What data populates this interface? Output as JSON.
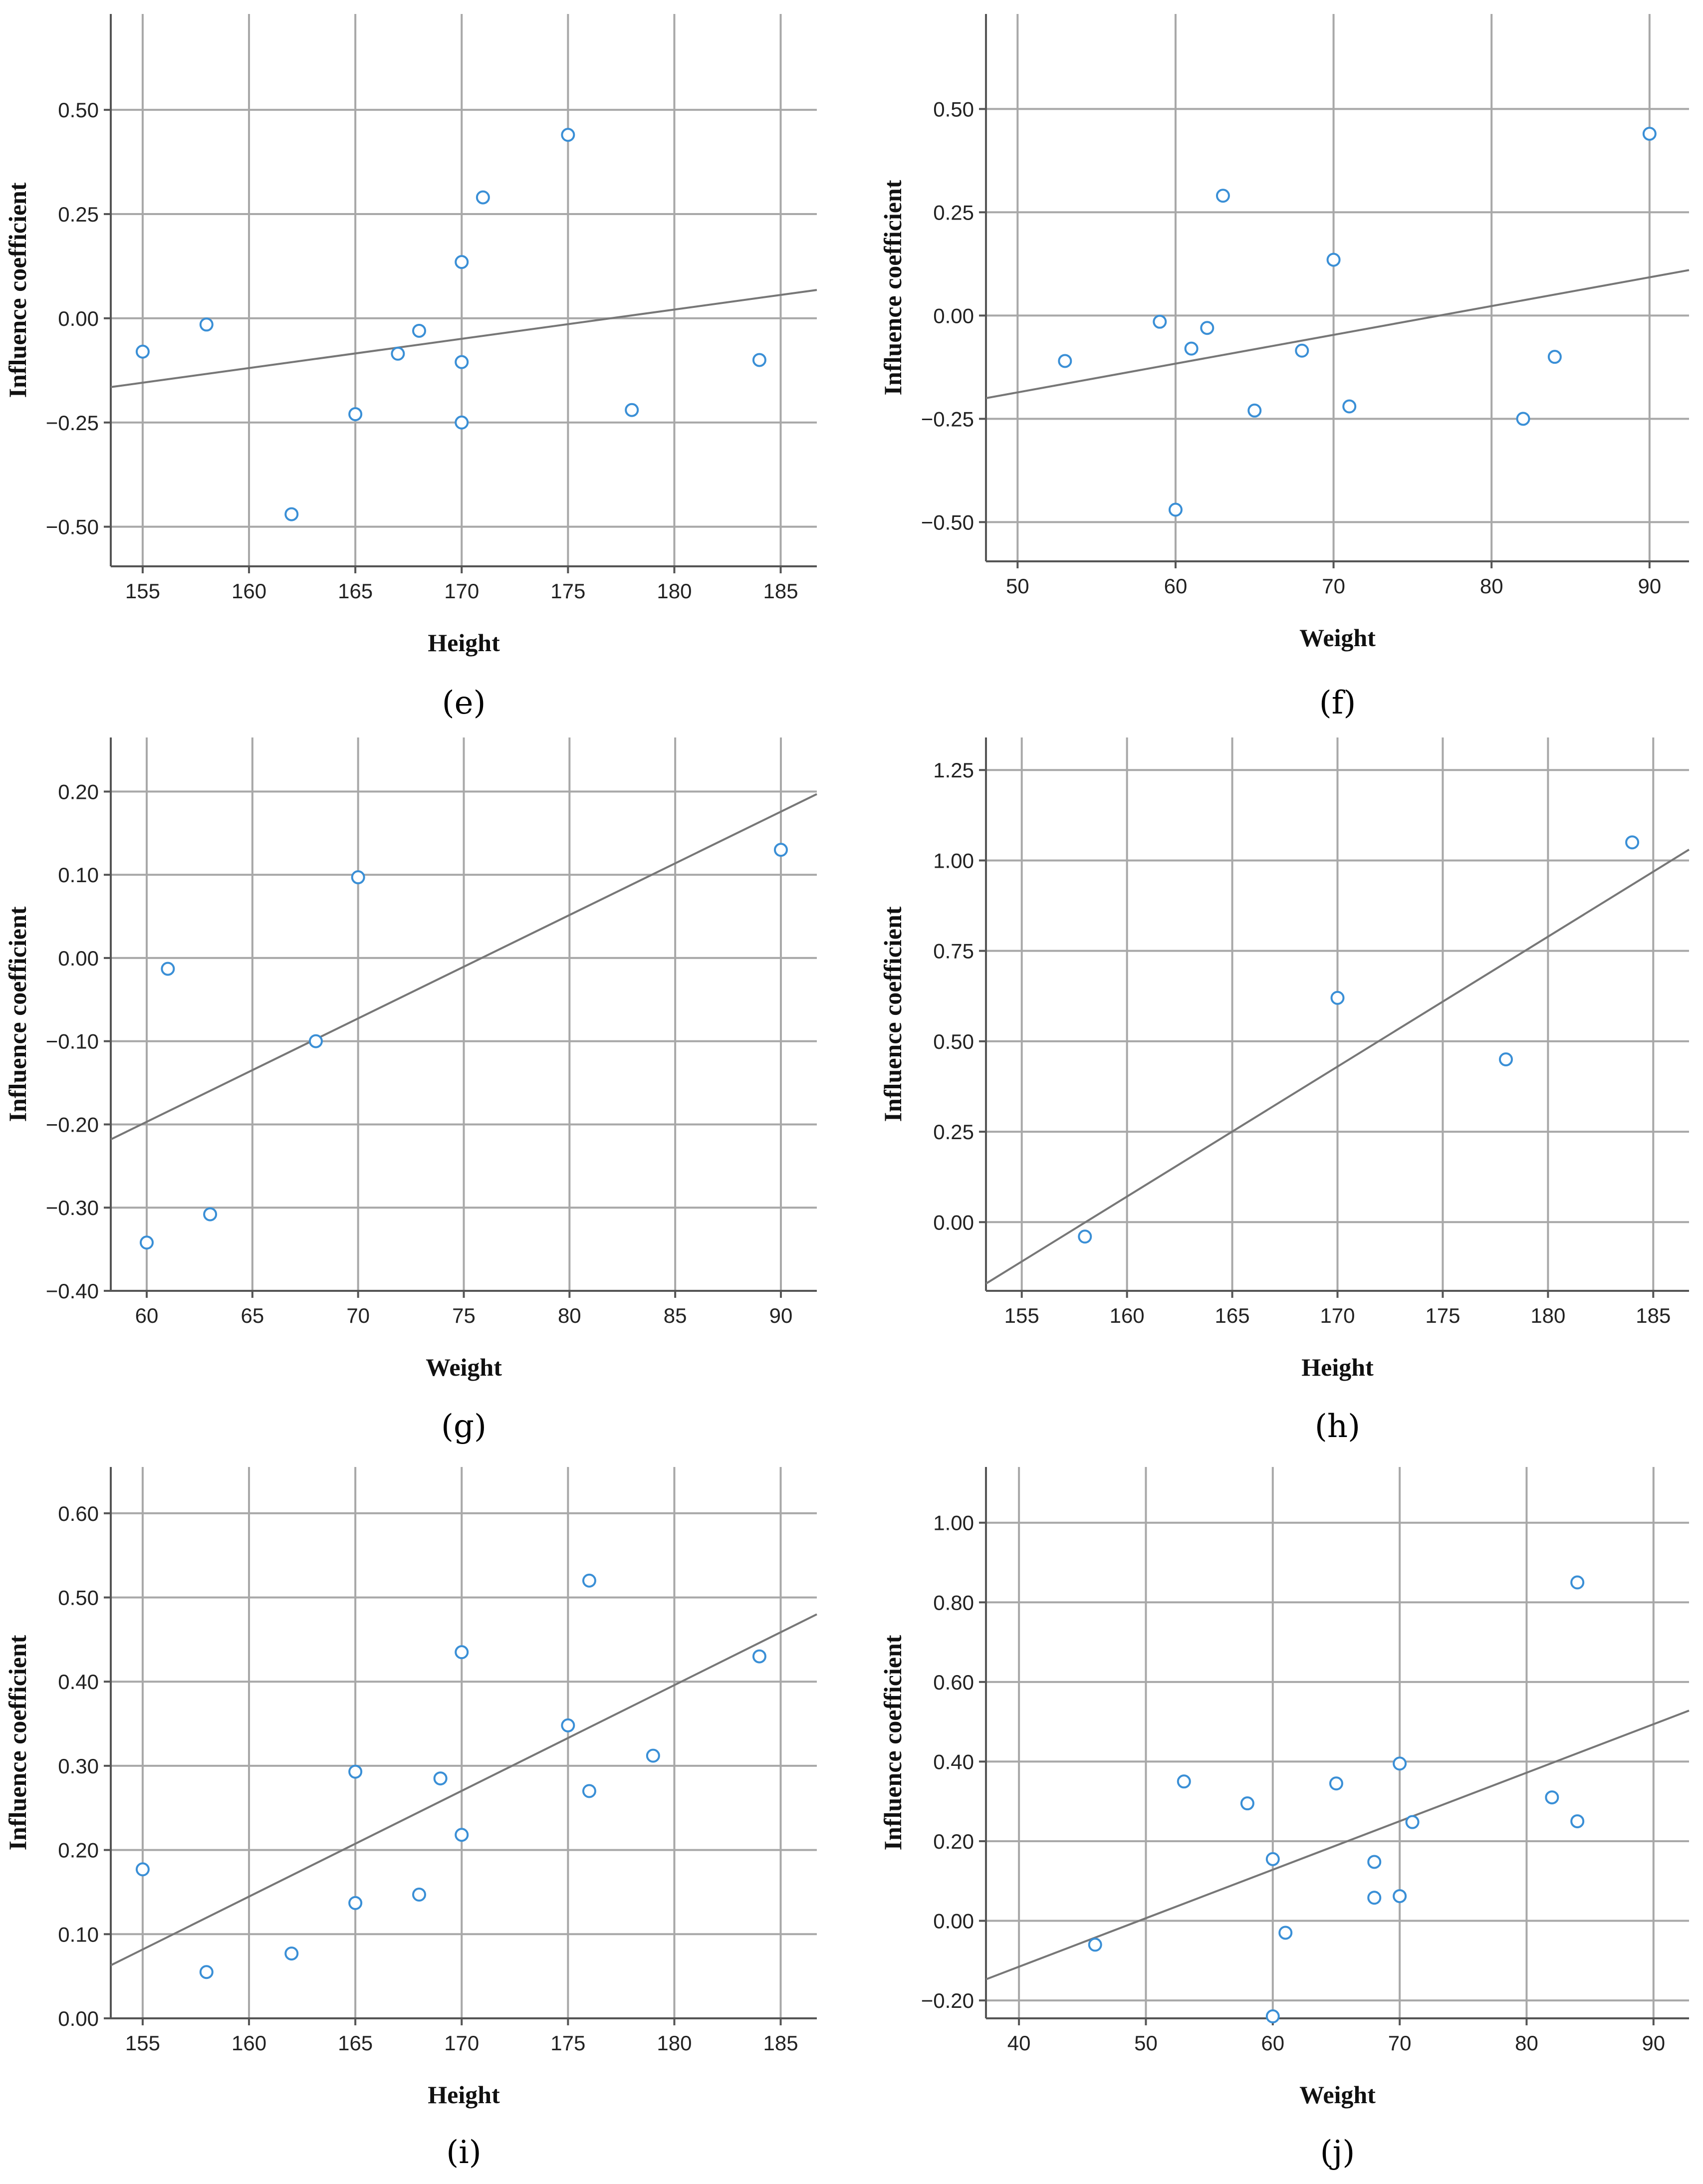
{
  "chart_data": [
    {
      "panel": "(e)",
      "panel_letter": "e",
      "type": "scatter",
      "xlabel": "Height",
      "ylabel": "Influence coefficient",
      "xlim": [
        153.5,
        186.7
      ],
      "ylim": [
        -0.595,
        0.73
      ],
      "xticks": [
        155,
        160,
        165,
        170,
        175,
        180,
        185
      ],
      "yticks": [
        -0.5,
        -0.25,
        0,
        0.25,
        0.5
      ],
      "ytick_labels": [
        "−0.50",
        "−0.25",
        "0.00",
        "0.25",
        "0.50"
      ],
      "x": [
        155,
        158,
        162,
        165,
        167,
        168,
        170,
        170,
        170,
        171,
        175,
        178,
        184
      ],
      "y": [
        -0.08,
        -0.015,
        -0.47,
        -0.23,
        -0.085,
        -0.03,
        0.135,
        -0.105,
        -0.25,
        0.29,
        0.44,
        -0.22,
        -0.1
      ],
      "fit_line": {
        "x": [
          153.5,
          186.7
        ],
        "y": [
          -0.165,
          0.068
        ]
      }
    },
    {
      "panel": "(f)",
      "panel_letter": "f",
      "type": "scatter",
      "xlabel": "Weight",
      "ylabel": "Influence coefficient",
      "xlim": [
        48,
        92.5
      ],
      "ylim": [
        -0.595,
        0.73
      ],
      "xticks": [
        50,
        60,
        70,
        80,
        90
      ],
      "yticks": [
        -0.5,
        -0.25,
        0,
        0.25,
        0.5
      ],
      "ytick_labels": [
        "−0.50",
        "−0.25",
        "0.00",
        "0.25",
        "0.50"
      ],
      "x": [
        53,
        59,
        60,
        61,
        62,
        63,
        65,
        68,
        70,
        71,
        82,
        84,
        90
      ],
      "y": [
        -0.11,
        -0.015,
        -0.47,
        -0.08,
        -0.03,
        0.29,
        -0.23,
        -0.085,
        0.135,
        -0.22,
        -0.25,
        -0.1,
        0.44
      ],
      "fit_line": {
        "x": [
          48,
          92.5
        ],
        "y": [
          -0.2,
          0.11
        ]
      }
    },
    {
      "panel": "(g)",
      "panel_letter": "g",
      "type": "scatter",
      "xlabel": "Weight",
      "ylabel": "Influence coefficient",
      "xlim": [
        58.3,
        91.7
      ],
      "ylim": [
        -0.4,
        0.265
      ],
      "xticks": [
        60,
        65,
        70,
        75,
        80,
        85,
        90
      ],
      "yticks": [
        -0.4,
        -0.3,
        -0.2,
        -0.1,
        0,
        0.1,
        0.2
      ],
      "ytick_labels": [
        "−0.40",
        "−0.30",
        "−0.20",
        "−0.10",
        "0.00",
        "0.10",
        "0.20"
      ],
      "x": [
        60,
        61,
        63,
        68,
        70,
        90
      ],
      "y": [
        -0.342,
        -0.013,
        -0.308,
        -0.1,
        0.097,
        0.13
      ],
      "fit_line": {
        "x": [
          58.3,
          91.7
        ],
        "y": [
          -0.218,
          0.197
        ]
      }
    },
    {
      "panel": "(h)",
      "panel_letter": "h",
      "type": "scatter",
      "xlabel": "Height",
      "ylabel": "Influence coefficient",
      "xlim": [
        153.3,
        186.7
      ],
      "ylim": [
        -0.19,
        1.34
      ],
      "xticks": [
        155,
        160,
        165,
        170,
        175,
        180,
        185
      ],
      "yticks": [
        0,
        0.25,
        0.5,
        0.75,
        1,
        1.25
      ],
      "ytick_labels": [
        "0.00",
        "0.25",
        "0.50",
        "0.75",
        "1.00",
        "1.25"
      ],
      "x": [
        158,
        170,
        178,
        184
      ],
      "y": [
        -0.04,
        0.62,
        0.45,
        1.05
      ],
      "fit_line": {
        "x": [
          153.3,
          186.7
        ],
        "y": [
          -0.17,
          1.03
        ]
      }
    },
    {
      "panel": "(i)",
      "panel_letter": "i",
      "type": "scatter",
      "xlabel": "Height",
      "ylabel": "Influence coefficient",
      "xlim": [
        153.5,
        186.7
      ],
      "ylim": [
        0,
        0.655
      ],
      "xticks": [
        155,
        160,
        165,
        170,
        175,
        180,
        185
      ],
      "yticks": [
        0,
        0.1,
        0.2,
        0.3,
        0.4,
        0.5,
        0.6
      ],
      "ytick_labels": [
        "0.00",
        "0.10",
        "0.20",
        "0.30",
        "0.40",
        "0.50",
        "0.60"
      ],
      "x": [
        155,
        158,
        162,
        165,
        165,
        168,
        169,
        170,
        170,
        175,
        176,
        176,
        179,
        184
      ],
      "y": [
        0.177,
        0.055,
        0.077,
        0.137,
        0.293,
        0.147,
        0.285,
        0.218,
        0.435,
        0.348,
        0.52,
        0.27,
        0.312,
        0.43
      ],
      "fit_line": {
        "x": [
          153.5,
          186.7
        ],
        "y": [
          0.063,
          0.48
        ]
      }
    },
    {
      "panel": "(j)",
      "panel_letter": "j",
      "type": "scatter",
      "xlabel": "Weight",
      "ylabel": "Influence coefficient",
      "xlim": [
        37.4,
        92.8
      ],
      "ylim": [
        -0.245,
        1.14
      ],
      "xticks": [
        40,
        50,
        60,
        70,
        80,
        90
      ],
      "yticks": [
        -0.2,
        0,
        0.2,
        0.4,
        0.6,
        0.8,
        1
      ],
      "ytick_labels": [
        "−0.20",
        "0.00",
        "0.20",
        "0.40",
        "0.60",
        "0.80",
        "1.00"
      ],
      "x": [
        46,
        53,
        58,
        60,
        60,
        61,
        65,
        68,
        68,
        70,
        70,
        71,
        82,
        84,
        84
      ],
      "y": [
        -0.06,
        0.35,
        0.295,
        0.155,
        -0.24,
        -0.03,
        0.345,
        0.148,
        0.058,
        0.062,
        0.395,
        0.248,
        0.31,
        0.25,
        0.85
      ],
      "fit_line": {
        "x": [
          37.4,
          92.8
        ],
        "y": [
          -0.147,
          0.528
        ]
      }
    }
  ]
}
